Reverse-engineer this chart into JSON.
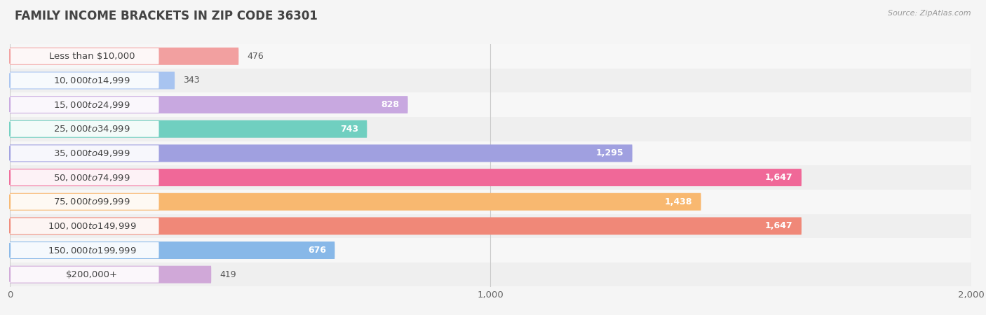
{
  "title": "FAMILY INCOME BRACKETS IN ZIP CODE 36301",
  "source": "Source: ZipAtlas.com",
  "categories": [
    "Less than $10,000",
    "$10,000 to $14,999",
    "$15,000 to $24,999",
    "$25,000 to $34,999",
    "$35,000 to $49,999",
    "$50,000 to $74,999",
    "$75,000 to $99,999",
    "$100,000 to $149,999",
    "$150,000 to $199,999",
    "$200,000+"
  ],
  "values": [
    476,
    343,
    828,
    743,
    1295,
    1647,
    1438,
    1647,
    676,
    419
  ],
  "bar_colors": [
    "#F2A0A0",
    "#A8C4F0",
    "#C8A8E0",
    "#70CFC0",
    "#A0A0E0",
    "#F06898",
    "#F8B870",
    "#F08878",
    "#88B8E8",
    "#D0A8D8"
  ],
  "row_bg_light": "#f7f7f7",
  "row_bg_dark": "#efefef",
  "bg_color": "#f5f5f5",
  "xlim": [
    0,
    2000
  ],
  "xticks": [
    0,
    1000,
    2000
  ],
  "title_fontsize": 12,
  "label_fontsize": 9.5,
  "value_fontsize": 9,
  "bar_height": 0.72,
  "value_threshold": 500
}
